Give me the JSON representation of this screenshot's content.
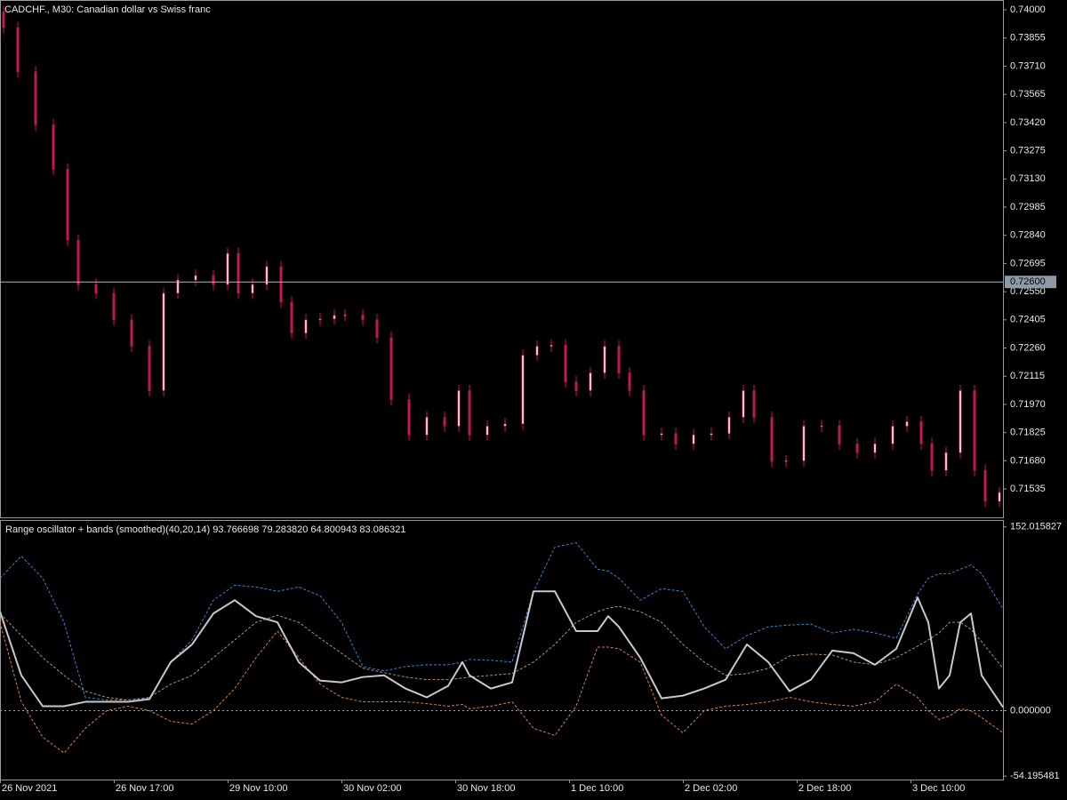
{
  "chart_data": [
    {
      "type": "candlestick",
      "title": "CADCHF., M30:  Canadian dollar vs Swiss franc",
      "x": [
        1,
        5,
        10,
        15,
        19,
        22,
        27,
        32,
        37,
        42,
        46,
        50,
        55,
        60,
        64,
        67,
        71,
        75,
        79,
        82,
        86,
        90,
        94,
        97,
        102,
        106,
        110,
        115,
        120,
        125,
        129,
        132,
        137,
        142,
        147,
        151,
        155,
        159,
        162,
        166,
        170,
        174,
        177,
        181,
        186,
        190,
        195,
        200,
        205,
        209,
        212,
        217,
        221,
        226,
        231,
        236,
        241,
        246,
        251,
        255,
        259,
        262,
        266,
        270,
        274,
        277,
        281
      ],
      "open": [
        0.7399,
        0.73909,
        0.73681,
        0.73408,
        0.7318,
        0.72815,
        0.72587,
        0.72542,
        0.72405,
        0.72269,
        0.72041,
        0.72542,
        0.7261,
        0.72633,
        0.72587,
        0.72747,
        0.72542,
        0.72587,
        0.72679,
        0.72496,
        0.72337,
        0.72405,
        0.7241,
        0.72428,
        0.7243,
        0.72405,
        0.72314,
        0.71995,
        0.71813,
        0.71904,
        0.71858,
        0.72041,
        0.71813,
        0.71858,
        0.7187,
        0.72223,
        0.72269,
        0.72275,
        0.72086,
        0.72041,
        0.72132,
        0.72269,
        0.72132,
        0.72041,
        0.71813,
        0.7182,
        0.71767,
        0.71813,
        0.7182,
        0.71904,
        0.72041,
        0.71904,
        0.71676,
        0.7168,
        0.71858,
        0.7186,
        0.71767,
        0.71722,
        0.71767,
        0.71858,
        0.71881,
        0.71767,
        0.71631,
        0.71722,
        0.72041,
        0.71631,
        0.71471
      ],
      "high": [
        0.7402,
        0.73939,
        0.73711,
        0.73438,
        0.7321,
        0.72845,
        0.72617,
        0.72572,
        0.72435,
        0.72299,
        0.72572,
        0.7264,
        0.72663,
        0.72663,
        0.72777,
        0.72777,
        0.72617,
        0.72709,
        0.72709,
        0.72526,
        0.72435,
        0.7244,
        0.72458,
        0.7246,
        0.7246,
        0.72435,
        0.72344,
        0.72025,
        0.71934,
        0.71934,
        0.72071,
        0.72071,
        0.71888,
        0.719,
        0.72253,
        0.72299,
        0.72305,
        0.72305,
        0.72116,
        0.72162,
        0.72299,
        0.72299,
        0.72162,
        0.72071,
        0.7185,
        0.7185,
        0.71843,
        0.7185,
        0.71934,
        0.72071,
        0.72071,
        0.71934,
        0.7171,
        0.71888,
        0.7189,
        0.7189,
        0.71797,
        0.71797,
        0.71888,
        0.71911,
        0.71911,
        0.71797,
        0.71752,
        0.72071,
        0.72071,
        0.71661,
        0.71547
      ],
      "low": [
        0.73879,
        0.73651,
        0.73378,
        0.7315,
        0.72785,
        0.72557,
        0.72512,
        0.72375,
        0.72239,
        0.72011,
        0.72011,
        0.72512,
        0.7258,
        0.72557,
        0.72557,
        0.72512,
        0.72512,
        0.72557,
        0.72466,
        0.72307,
        0.72307,
        0.72375,
        0.7238,
        0.72398,
        0.72375,
        0.72284,
        0.71965,
        0.71783,
        0.71783,
        0.71828,
        0.71828,
        0.71783,
        0.71783,
        0.71828,
        0.7184,
        0.72193,
        0.72239,
        0.72056,
        0.72011,
        0.72011,
        0.72102,
        0.72102,
        0.72011,
        0.71783,
        0.71783,
        0.71737,
        0.71737,
        0.71783,
        0.7179,
        0.71874,
        0.71874,
        0.71646,
        0.71646,
        0.7165,
        0.71828,
        0.71737,
        0.71692,
        0.71692,
        0.71737,
        0.71828,
        0.71737,
        0.71601,
        0.71601,
        0.71692,
        0.71601,
        0.71441,
        0.71441
      ],
      "close": [
        0.73909,
        0.73681,
        0.73408,
        0.7318,
        0.72815,
        0.72587,
        0.72542,
        0.72405,
        0.72269,
        0.72041,
        0.72542,
        0.7261,
        0.72633,
        0.72587,
        0.72747,
        0.72542,
        0.72587,
        0.72679,
        0.72496,
        0.72337,
        0.72405,
        0.7241,
        0.72428,
        0.7243,
        0.72405,
        0.72314,
        0.71995,
        0.71813,
        0.71904,
        0.71858,
        0.72041,
        0.71813,
        0.71858,
        0.7187,
        0.72223,
        0.72269,
        0.72275,
        0.72086,
        0.72041,
        0.72132,
        0.72269,
        0.72132,
        0.72041,
        0.71813,
        0.7182,
        0.71767,
        0.71813,
        0.7182,
        0.71904,
        0.72041,
        0.71904,
        0.71676,
        0.7168,
        0.71858,
        0.7186,
        0.71767,
        0.71722,
        0.71767,
        0.71858,
        0.71881,
        0.71767,
        0.71631,
        0.71722,
        0.72041,
        0.71631,
        0.71471,
        0.71517
      ],
      "up_color": "#f4c7d6",
      "down_color": "#c2185b",
      "xlim": [
        0,
        282
      ],
      "ylim": [
        0.71389,
        0.74046
      ],
      "yticks": [
        {
          "value": 0.74,
          "label": "0.74000"
        },
        0.73855,
        {
          "value": 0.7371,
          "label": "0.73710"
        },
        0.73565,
        {
          "value": 0.7342,
          "label": "0.73420"
        },
        0.73275,
        {
          "value": 0.7313,
          "label": "0.73130"
        },
        0.72985,
        {
          "value": 0.7284,
          "label": "0.72840"
        },
        0.72695,
        {
          "value": 0.7255,
          "label": "0.72550"
        },
        0.72405,
        {
          "value": 0.7226,
          "label": "0.72260"
        },
        0.72115,
        {
          "value": 0.7197,
          "label": "0.71970"
        },
        0.71825,
        {
          "value": 0.7168,
          "label": "0.71680"
        },
        0.71535
      ],
      "price_line": 0.726,
      "price_line_label": "0.72600"
    },
    {
      "type": "line",
      "title": "Range oscillator + bands (smoothed)(40,20,14) 93.766698 79.283820 64.800943 83.086321",
      "x": [
        0,
        6,
        12,
        18,
        24,
        30,
        36,
        42,
        48,
        54,
        60,
        66,
        72,
        78,
        84,
        90,
        96,
        102,
        108,
        114,
        120,
        126,
        130,
        132,
        138,
        144,
        150,
        156,
        162,
        168,
        171,
        174,
        180,
        186,
        192,
        198,
        204,
        210,
        216,
        222,
        228,
        234,
        240,
        246,
        252,
        258,
        261,
        264,
        267,
        270,
        273,
        276,
        282
      ],
      "series": [
        {
          "color": "#3b82d6",
          "style": "dashed",
          "values": [
            109.6,
            127.9,
            109.6,
            73.1,
            11.0,
            8.8,
            8.8,
            10.2,
            40.2,
            58.5,
            91.4,
            103.8,
            102.3,
            98.7,
            102.3,
            95.0,
            73.1,
            36.5,
            32.9,
            36.5,
            38.0,
            38.0,
            40.2,
            42.4,
            41.7,
            40.2,
            98.7,
            135.2,
            138.9,
            117.0,
            115.5,
            109.6,
            91.4,
            100.9,
            98.7,
            69.4,
            51.2,
            62.1,
            69.4,
            70.9,
            71.6,
            64.3,
            67.3,
            64.3,
            59.9,
            96.5,
            109.6,
            113.3,
            113.3,
            117.0,
            120.6,
            113.3,
            84.1
          ]
        },
        {
          "color": "#b8906c",
          "style": "dashed",
          "values": [
            80.4,
            62.1,
            43.9,
            29.2,
            16.1,
            11.0,
            8.8,
            11.0,
            21.9,
            29.2,
            43.9,
            58.5,
            73.1,
            78.9,
            73.1,
            59.9,
            47.5,
            35.1,
            31.4,
            27.8,
            25.6,
            25.6,
            27.0,
            27.8,
            29.2,
            30.7,
            40.2,
            54.8,
            73.1,
            81.9,
            84.8,
            86.3,
            81.9,
            73.1,
            54.8,
            40.2,
            29.2,
            30.7,
            35.1,
            45.3,
            46.8,
            46.1,
            40.2,
            38.0,
            43.9,
            53.4,
            58.5,
            64.3,
            73.1,
            73.1,
            67.3,
            57.0,
            35.1
          ]
        },
        {
          "color": "#d9813f",
          "style": "dashed",
          "values": [
            73.1,
            7.3,
            -21.9,
            -35.1,
            -14.6,
            0,
            3.7,
            0,
            -8.8,
            -11.0,
            0,
            18.3,
            43.9,
            65.8,
            43.9,
            21.9,
            11.0,
            7.3,
            7.3,
            7.3,
            5.8,
            3.7,
            5.1,
            1.5,
            3.7,
            7.3,
            -14.6,
            -20.5,
            3.7,
            52.6,
            52.6,
            51.2,
            40.2,
            -3.7,
            -18.3,
            0,
            3.7,
            5.1,
            7.3,
            11.0,
            7.3,
            5.1,
            3.7,
            7.3,
            21.9,
            11.0,
            0,
            -7.3,
            -4.4,
            1.5,
            0,
            -5.8,
            -18.3
          ]
        },
        {
          "color": "#c8c8c8",
          "style": "solid",
          "values": [
            81.9,
            29.2,
            3.7,
            3.7,
            7.3,
            7.3,
            7.3,
            9.5,
            40.2,
            54.8,
            80.4,
            91.4,
            78.2,
            73.1,
            40.2,
            24.9,
            23.4,
            27.8,
            29.2,
            18.3,
            11.0,
            20.5,
            40.2,
            29.2,
            18.3,
            23.4,
            98.7,
            98.7,
            65.8,
            65.8,
            78.2,
            69.4,
            43.9,
            10.2,
            12.4,
            18.3,
            25.6,
            54.8,
            40.2,
            16.1,
            25.6,
            49.7,
            47.5,
            38.0,
            51.2,
            93.6,
            73.1,
            18.3,
            29.2,
            73.1,
            80.4,
            29.2,
            2.9
          ]
        }
      ],
      "levels": [
        0
      ],
      "level_color": "#c8a070",
      "xlim": [
        0,
        282
      ],
      "xticks": [
        {
          "value": 0,
          "label": "26 Nov 2021"
        },
        {
          "value": 32,
          "label": "26 Nov 17:00"
        },
        {
          "value": 64,
          "label": "29 Nov 10:00"
        },
        {
          "value": 96,
          "label": "30 Nov 02:00"
        },
        {
          "value": 128,
          "label": "30 Nov 18:00"
        },
        {
          "value": 160,
          "label": "1 Dec 10:00"
        },
        {
          "value": 192,
          "label": "2 Dec 02:00"
        },
        {
          "value": 224,
          "label": "2 Dec 18:00"
        },
        {
          "value": 256,
          "label": "3 Dec 10:00"
        }
      ],
      "ylim": [
        -57,
        157
      ],
      "yticks": [
        152.015827,
        {
          "value": 0,
          "label": "0.000000"
        },
        -54.195481
      ]
    }
  ]
}
